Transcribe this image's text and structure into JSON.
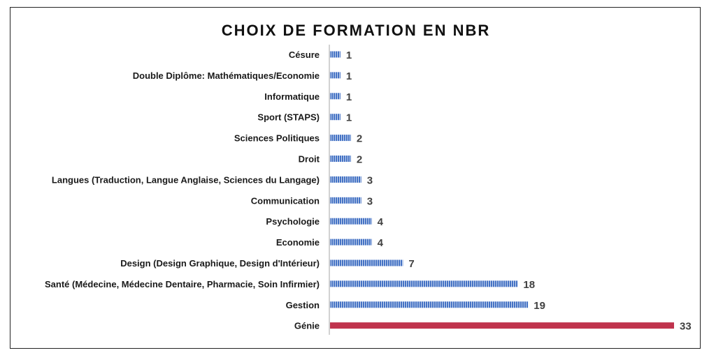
{
  "chart_data": {
    "type": "bar",
    "orientation": "horizontal",
    "title": "CHOIX DE FORMATION EN NBR",
    "categories": [
      "Césure",
      "Double Diplôme: Mathématiques/Economie",
      "Informatique",
      "Sport (STAPS)",
      "Sciences Politiques",
      "Droit",
      "Langues (Traduction, Langue Anglaise, Sciences du Langage)",
      "Communication",
      "Psychologie",
      "Economie",
      "Design (Design Graphique, Design d'Intérieur)",
      "Santé (Médecine, Médecine Dentaire, Pharmacie, Soin Infirmier)",
      "Gestion",
      "Génie"
    ],
    "values": [
      1,
      1,
      1,
      1,
      2,
      2,
      3,
      3,
      4,
      4,
      7,
      18,
      19,
      33
    ],
    "data_labels": [
      "1",
      "1",
      "1",
      "1",
      "2",
      "2",
      "3",
      "3",
      "4",
      "4",
      "7",
      "18",
      "19",
      "33"
    ],
    "highlight_category": "Génie",
    "colors": {
      "bar": "#4472c4",
      "highlight": "#c0334d",
      "axis": "#a6a6a6"
    },
    "xlim": [
      0,
      33
    ],
    "grid": false,
    "legend": "none"
  }
}
